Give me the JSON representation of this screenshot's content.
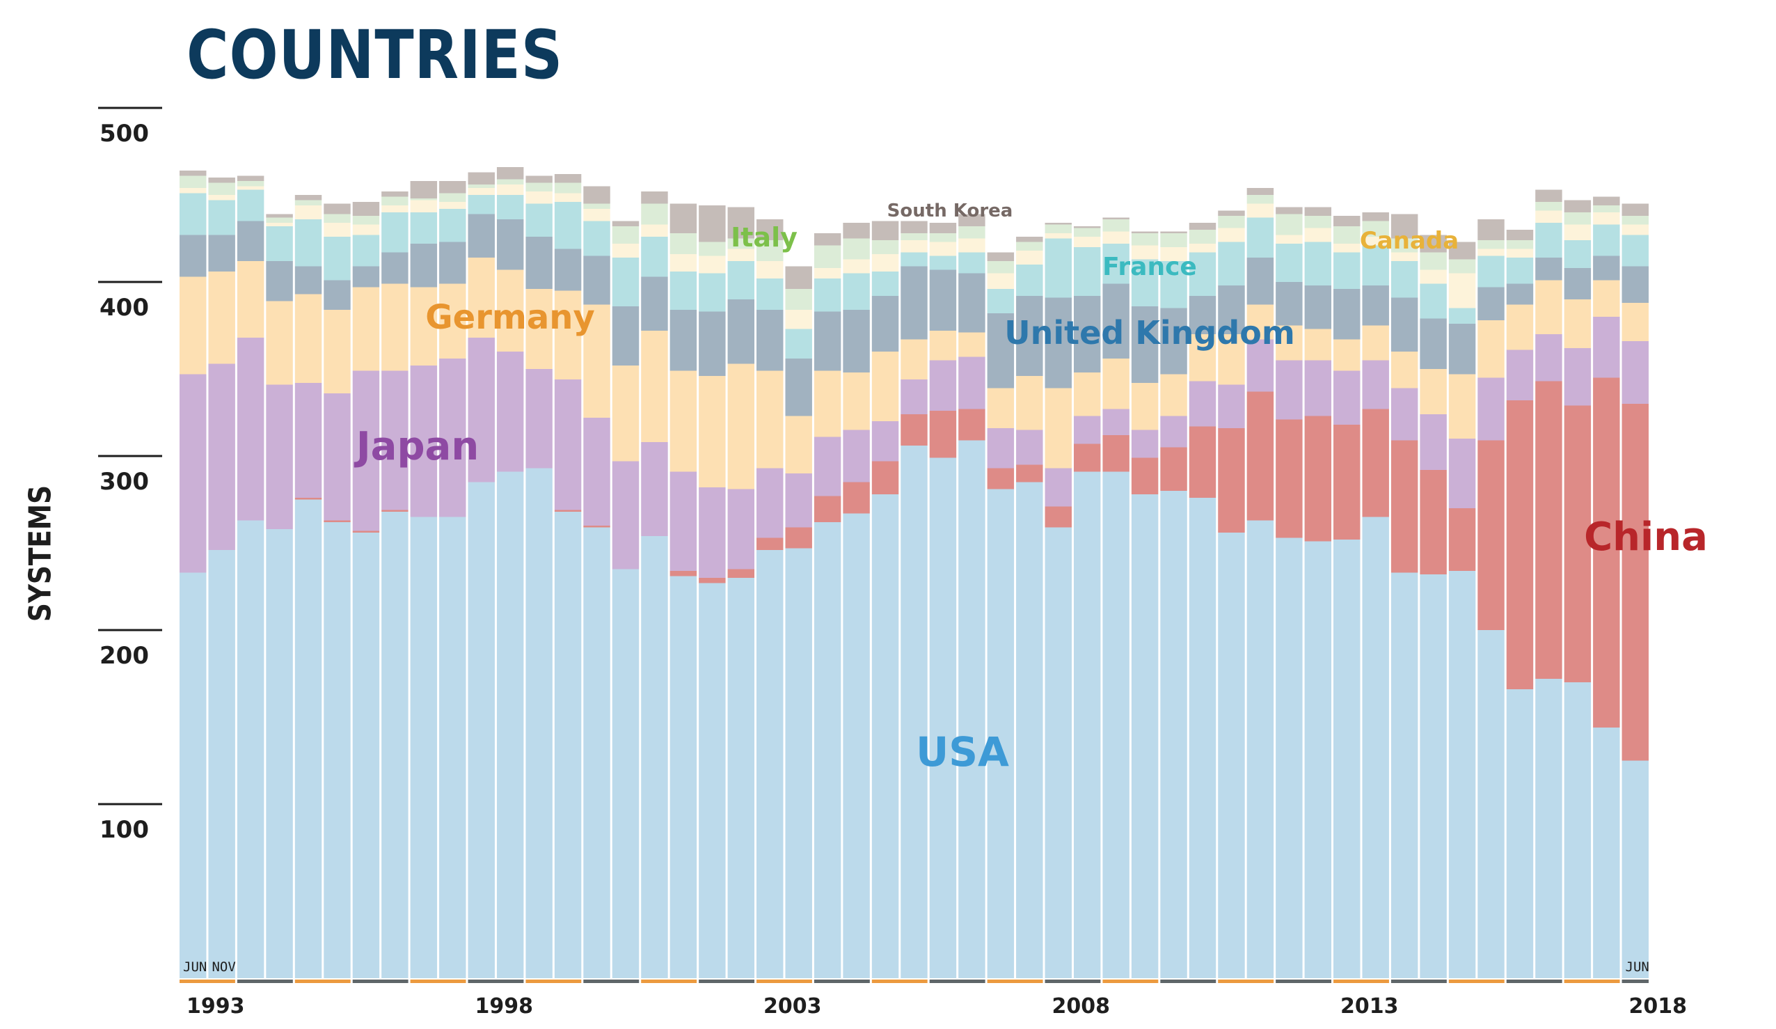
{
  "page": {
    "title": "COUNTRIES"
  },
  "chart_data": {
    "type": "bar",
    "stacked": true,
    "title": "COUNTRIES",
    "xlabel": "",
    "ylabel": "SYSTEMS",
    "ylim": [
      0,
      500
    ],
    "yticks": [
      100,
      200,
      300,
      400,
      500
    ],
    "grid": false,
    "legend": "inline labels",
    "x_year_labels": [
      "1993",
      "1998",
      "2003",
      "2008",
      "2013",
      "2018"
    ],
    "month_markers": [
      {
        "index": 0,
        "label": "JUN"
      },
      {
        "index": 1,
        "label": "NOV"
      },
      {
        "index": 50,
        "label": "JUN"
      }
    ],
    "year_band_colors": [
      "#ec9a3f",
      "#5f6669"
    ],
    "categories": [
      "Jun 1993",
      "Nov 1993",
      "Jun 1994",
      "Nov 1994",
      "Jun 1995",
      "Nov 1995",
      "Jun 1996",
      "Nov 1996",
      "Jun 1997",
      "Nov 1997",
      "Jun 1998",
      "Nov 1998",
      "Jun 1999",
      "Nov 1999",
      "Jun 2000",
      "Nov 2000",
      "Jun 2001",
      "Nov 2001",
      "Jun 2002",
      "Nov 2002",
      "Jun 2003",
      "Nov 2003",
      "Jun 2004",
      "Nov 2004",
      "Jun 2005",
      "Nov 2005",
      "Jun 2006",
      "Nov 2006",
      "Jun 2007",
      "Nov 2007",
      "Jun 2008",
      "Nov 2008",
      "Jun 2009",
      "Nov 2009",
      "Jun 2010",
      "Nov 2010",
      "Jun 2011",
      "Nov 2011",
      "Jun 2012",
      "Nov 2012",
      "Jun 2013",
      "Nov 2013",
      "Jun 2014",
      "Nov 2014",
      "Jun 2015",
      "Nov 2015",
      "Jun 2016",
      "Nov 2016",
      "Jun 2017",
      "Nov 2017",
      "Jun 2018"
    ],
    "series": [
      {
        "name": "USA",
        "color": "#bcdaeb",
        "label_color": "#3d9ad6",
        "values": [
          233,
          246,
          263,
          258,
          275,
          262,
          256,
          268,
          265,
          265,
          285,
          291,
          293,
          268,
          259,
          235,
          254,
          231,
          227,
          230,
          246,
          247,
          262,
          267,
          278,
          306,
          299,
          309,
          281,
          285,
          259,
          291,
          291,
          278,
          280,
          276,
          256,
          263,
          253,
          251,
          252,
          265,
          233,
          232,
          234,
          200,
          166,
          172,
          170,
          144,
          125
        ]
      },
      {
        "name": "China",
        "color": "#de8b87",
        "label_color": "#b8262a",
        "values": [
          0,
          0,
          0,
          0,
          1,
          1,
          1,
          1,
          0,
          0,
          0,
          0,
          0,
          1,
          1,
          0,
          0,
          3,
          3,
          5,
          7,
          12,
          15,
          18,
          19,
          18,
          27,
          18,
          12,
          10,
          12,
          16,
          21,
          21,
          25,
          41,
          60,
          74,
          68,
          72,
          66,
          62,
          76,
          60,
          36,
          109,
          166,
          171,
          159,
          201,
          205
        ]
      },
      {
        "name": "Japan",
        "color": "#cbb0d6",
        "label_color": "#8e4aa3",
        "values": [
          114,
          107,
          105,
          83,
          66,
          73,
          92,
          80,
          87,
          91,
          83,
          69,
          57,
          75,
          62,
          62,
          54,
          57,
          52,
          46,
          40,
          31,
          34,
          30,
          23,
          20,
          29,
          30,
          23,
          20,
          22,
          16,
          15,
          16,
          18,
          26,
          25,
          30,
          34,
          32,
          31,
          28,
          30,
          32,
          40,
          36,
          29,
          27,
          33,
          35,
          36
        ]
      },
      {
        "name": "Germany",
        "color": "#fde0b3",
        "label_color": "#e8952f",
        "values": [
          56,
          53,
          44,
          48,
          51,
          48,
          48,
          50,
          45,
          43,
          46,
          47,
          46,
          51,
          65,
          55,
          64,
          58,
          64,
          72,
          56,
          33,
          38,
          33,
          40,
          23,
          17,
          14,
          23,
          31,
          46,
          25,
          29,
          27,
          24,
          27,
          29,
          20,
          20,
          18,
          18,
          20,
          21,
          26,
          37,
          33,
          26,
          31,
          28,
          21,
          22
        ]
      },
      {
        "name": "United Kingdom",
        "color": "#a1b2c0",
        "label_color": "#2e78ac",
        "values": [
          24,
          21,
          23,
          23,
          16,
          17,
          12,
          18,
          25,
          24,
          25,
          29,
          30,
          24,
          28,
          34,
          31,
          35,
          37,
          37,
          35,
          33,
          34,
          36,
          32,
          42,
          35,
          34,
          43,
          46,
          52,
          44,
          43,
          44,
          38,
          22,
          28,
          27,
          25,
          25,
          29,
          23,
          31,
          29,
          29,
          19,
          12,
          13,
          18,
          14,
          21
        ]
      },
      {
        "name": "France",
        "color": "#b5e0e3",
        "label_color": "#3bbac0",
        "values": [
          24,
          20,
          18,
          20,
          27,
          25,
          18,
          23,
          18,
          19,
          11,
          14,
          19,
          27,
          20,
          28,
          23,
          22,
          22,
          22,
          18,
          17,
          19,
          21,
          14,
          8,
          8,
          12,
          14,
          18,
          34,
          28,
          23,
          27,
          27,
          25,
          25,
          23,
          22,
          25,
          21,
          23,
          21,
          20,
          9,
          18,
          15,
          20,
          16,
          18,
          18
        ]
      },
      {
        "name": "Canada",
        "color": "#fdf3da",
        "label_color": "#e8b23a",
        "values": [
          3,
          3,
          2,
          2,
          8,
          8,
          6,
          4,
          7,
          4,
          4,
          6,
          7,
          5,
          7,
          8,
          7,
          10,
          10,
          7,
          10,
          11,
          6,
          8,
          10,
          7,
          8,
          8,
          9,
          8,
          3,
          6,
          7,
          8,
          8,
          5,
          8,
          8,
          5,
          8,
          5,
          5,
          5,
          8,
          20,
          4,
          5,
          7,
          9,
          7,
          6
        ]
      },
      {
        "name": "Italy",
        "color": "#dcecd7",
        "label_color": "#7cc04a",
        "values": [
          7,
          7,
          3,
          3,
          3,
          5,
          5,
          5,
          1,
          5,
          2,
          3,
          5,
          6,
          3,
          10,
          12,
          12,
          8,
          6,
          12,
          12,
          13,
          12,
          8,
          4,
          5,
          7,
          7,
          5,
          5,
          5,
          7,
          7,
          8,
          8,
          7,
          5,
          12,
          7,
          10,
          9,
          8,
          10,
          8,
          5,
          5,
          5,
          7,
          4,
          5
        ]
      },
      {
        "name": "South Korea",
        "color": "#c5bcb8",
        "label_color": "#766965",
        "values": [
          3,
          3,
          3,
          2,
          3,
          6,
          8,
          3,
          10,
          7,
          7,
          7,
          4,
          5,
          10,
          3,
          7,
          17,
          21,
          18,
          12,
          13,
          7,
          9,
          11,
          7,
          6,
          7,
          5,
          3,
          1,
          1,
          1,
          1,
          1,
          4,
          3,
          4,
          4,
          5,
          6,
          5,
          14,
          10,
          10,
          12,
          6,
          7,
          7,
          5,
          7
        ]
      }
    ]
  }
}
